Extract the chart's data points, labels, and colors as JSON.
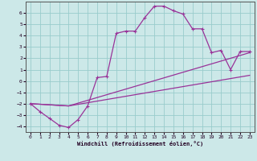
{
  "xlabel": "Windchill (Refroidissement éolien,°C)",
  "bg_color": "#cce8e8",
  "grid_color": "#99cccc",
  "line_color": "#993399",
  "xlim": [
    -0.5,
    23.5
  ],
  "ylim": [
    -4.5,
    7.0
  ],
  "xticks": [
    0,
    1,
    2,
    3,
    4,
    5,
    6,
    7,
    8,
    9,
    10,
    11,
    12,
    13,
    14,
    15,
    16,
    17,
    18,
    19,
    20,
    21,
    22,
    23
  ],
  "yticks": [
    -4,
    -3,
    -2,
    -1,
    0,
    1,
    2,
    3,
    4,
    5,
    6
  ],
  "curve1_x": [
    0,
    1,
    2,
    3,
    4,
    5,
    6,
    7,
    8,
    9,
    10,
    11,
    12,
    13,
    14,
    15,
    16,
    17,
    18,
    19,
    20,
    21,
    22,
    23
  ],
  "curve1_y": [
    -2.0,
    -2.7,
    -3.3,
    -3.9,
    -4.1,
    -3.4,
    -2.2,
    0.3,
    0.4,
    4.2,
    4.4,
    4.4,
    5.6,
    6.6,
    6.6,
    6.2,
    5.9,
    4.6,
    4.6,
    2.5,
    2.7,
    1.0,
    2.6,
    2.6
  ],
  "curve2_x": [
    0,
    4,
    23
  ],
  "curve2_y": [
    -2.0,
    -2.2,
    0.5
  ],
  "curve3_x": [
    0,
    4,
    23
  ],
  "curve3_y": [
    -2.0,
    -2.2,
    2.5
  ],
  "marker": "+"
}
